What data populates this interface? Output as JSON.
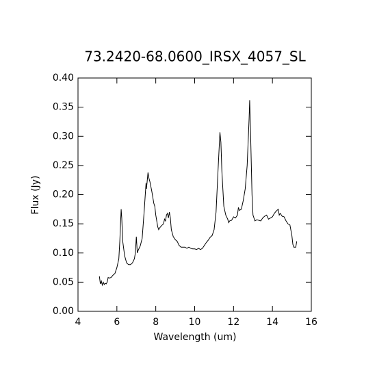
{
  "chart_data": {
    "type": "line",
    "title": "73.2420-68.0600_IRSX_4057_SL",
    "xlabel": "Wavelength (um)",
    "ylabel": "Flux (Jy)",
    "color": "#000000",
    "xlim": [
      4,
      16
    ],
    "ylim": [
      0,
      0.4
    ],
    "xticks": [
      4,
      6,
      8,
      10,
      12,
      14,
      16
    ],
    "yticks": [
      {
        "value": 0,
        "label": "0.00"
      },
      {
        "value": 0.05,
        "label": "0.05"
      },
      {
        "value": 0.1,
        "label": "0.10"
      },
      {
        "value": 0.15,
        "label": "0.15"
      },
      {
        "value": 0.2,
        "label": "0.20"
      },
      {
        "value": 0.25,
        "label": "0.25"
      },
      {
        "value": 0.3,
        "label": "0.30"
      },
      {
        "value": 0.35,
        "label": "0.35"
      },
      {
        "value": 0.4,
        "label": "0.40"
      }
    ],
    "x": [
      5.1,
      5.15,
      5.2,
      5.25,
      5.3,
      5.35,
      5.4,
      5.45,
      5.5,
      5.55,
      5.6,
      5.7,
      5.8,
      5.9,
      6.0,
      6.1,
      6.15,
      6.2,
      6.22,
      6.25,
      6.3,
      6.4,
      6.5,
      6.6,
      6.7,
      6.8,
      6.9,
      6.95,
      7.0,
      7.05,
      7.1,
      7.2,
      7.3,
      7.4,
      7.5,
      7.52,
      7.55,
      7.6,
      7.65,
      7.7,
      7.8,
      7.9,
      7.95,
      8.0,
      8.1,
      8.15,
      8.2,
      8.3,
      8.4,
      8.45,
      8.5,
      8.55,
      8.6,
      8.65,
      8.7,
      8.75,
      8.8,
      8.9,
      9.0,
      9.1,
      9.2,
      9.3,
      9.4,
      9.5,
      9.6,
      9.7,
      9.8,
      9.9,
      10.0,
      10.1,
      10.2,
      10.3,
      10.4,
      10.5,
      10.6,
      10.7,
      10.8,
      10.9,
      11.0,
      11.1,
      11.2,
      11.3,
      11.35,
      11.4,
      11.5,
      11.6,
      11.7,
      11.75,
      11.8,
      11.9,
      12.0,
      12.1,
      12.2,
      12.25,
      12.3,
      12.4,
      12.5,
      12.6,
      12.7,
      12.8,
      12.83,
      12.88,
      12.95,
      13.0,
      13.1,
      13.2,
      13.3,
      13.4,
      13.5,
      13.6,
      13.7,
      13.8,
      13.9,
      14.0,
      14.1,
      14.2,
      14.3,
      14.35,
      14.4,
      14.5,
      14.6,
      14.7,
      14.8,
      14.9,
      15.0,
      15.05,
      15.1,
      15.2,
      15.25
    ],
    "values": [
      0.06,
      0.047,
      0.052,
      0.045,
      0.05,
      0.046,
      0.048,
      0.047,
      0.05,
      0.058,
      0.057,
      0.058,
      0.062,
      0.065,
      0.075,
      0.09,
      0.12,
      0.16,
      0.175,
      0.16,
      0.12,
      0.095,
      0.083,
      0.08,
      0.08,
      0.083,
      0.09,
      0.1,
      0.128,
      0.1,
      0.105,
      0.112,
      0.125,
      0.17,
      0.22,
      0.21,
      0.22,
      0.238,
      0.228,
      0.222,
      0.205,
      0.185,
      0.18,
      0.165,
      0.145,
      0.14,
      0.143,
      0.147,
      0.15,
      0.158,
      0.155,
      0.165,
      0.168,
      0.16,
      0.17,
      0.16,
      0.14,
      0.128,
      0.123,
      0.12,
      0.113,
      0.11,
      0.11,
      0.11,
      0.108,
      0.11,
      0.108,
      0.107,
      0.107,
      0.106,
      0.108,
      0.106,
      0.108,
      0.113,
      0.118,
      0.122,
      0.127,
      0.13,
      0.14,
      0.17,
      0.24,
      0.307,
      0.29,
      0.24,
      0.18,
      0.165,
      0.158,
      0.152,
      0.155,
      0.156,
      0.162,
      0.16,
      0.165,
      0.178,
      0.173,
      0.175,
      0.19,
      0.21,
      0.25,
      0.33,
      0.362,
      0.3,
      0.2,
      0.165,
      0.155,
      0.157,
      0.156,
      0.155,
      0.16,
      0.163,
      0.165,
      0.158,
      0.16,
      0.162,
      0.168,
      0.172,
      0.175,
      0.165,
      0.168,
      0.163,
      0.162,
      0.155,
      0.15,
      0.148,
      0.13,
      0.115,
      0.11,
      0.11,
      0.12
    ]
  }
}
